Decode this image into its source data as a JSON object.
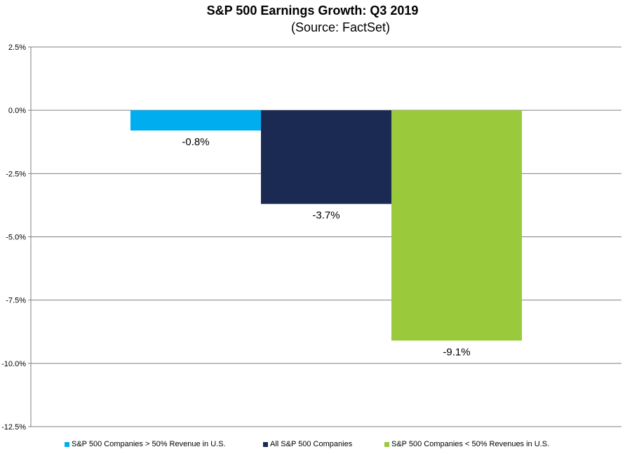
{
  "chart_data": {
    "type": "bar",
    "title": "S&P 500 Earnings Growth: Q3 2019",
    "subtitle": "(Source: FactSet)",
    "categories": [
      "S&P 500 Companies > 50% Revenue in U.S.",
      "All S&P 500 Companies",
      "S&P 500 Companies < 50% Revenues in U.S."
    ],
    "values": [
      -0.8,
      -3.7,
      -9.1
    ],
    "data_labels": [
      "-0.8%",
      "-3.7%",
      "-9.1%"
    ],
    "colors": [
      "#00AEEF",
      "#1B2A52",
      "#9AC93C"
    ],
    "ylim": [
      -12.5,
      2.5
    ],
    "yticks": [
      2.5,
      0.0,
      -2.5,
      -5.0,
      -7.5,
      -10.0,
      -12.5
    ],
    "ytick_labels": [
      "2.5%",
      "0.0%",
      "-2.5%",
      "-5.0%",
      "-7.5%",
      "-10.0%",
      "-12.5%"
    ],
    "grid": true,
    "legend_position": "bottom",
    "legend": [
      "S&P 500 Companies > 50% Revenue in U.S.",
      "All S&P 500 Companies",
      "S&P 500 Companies < 50% Revenues in U.S."
    ]
  }
}
